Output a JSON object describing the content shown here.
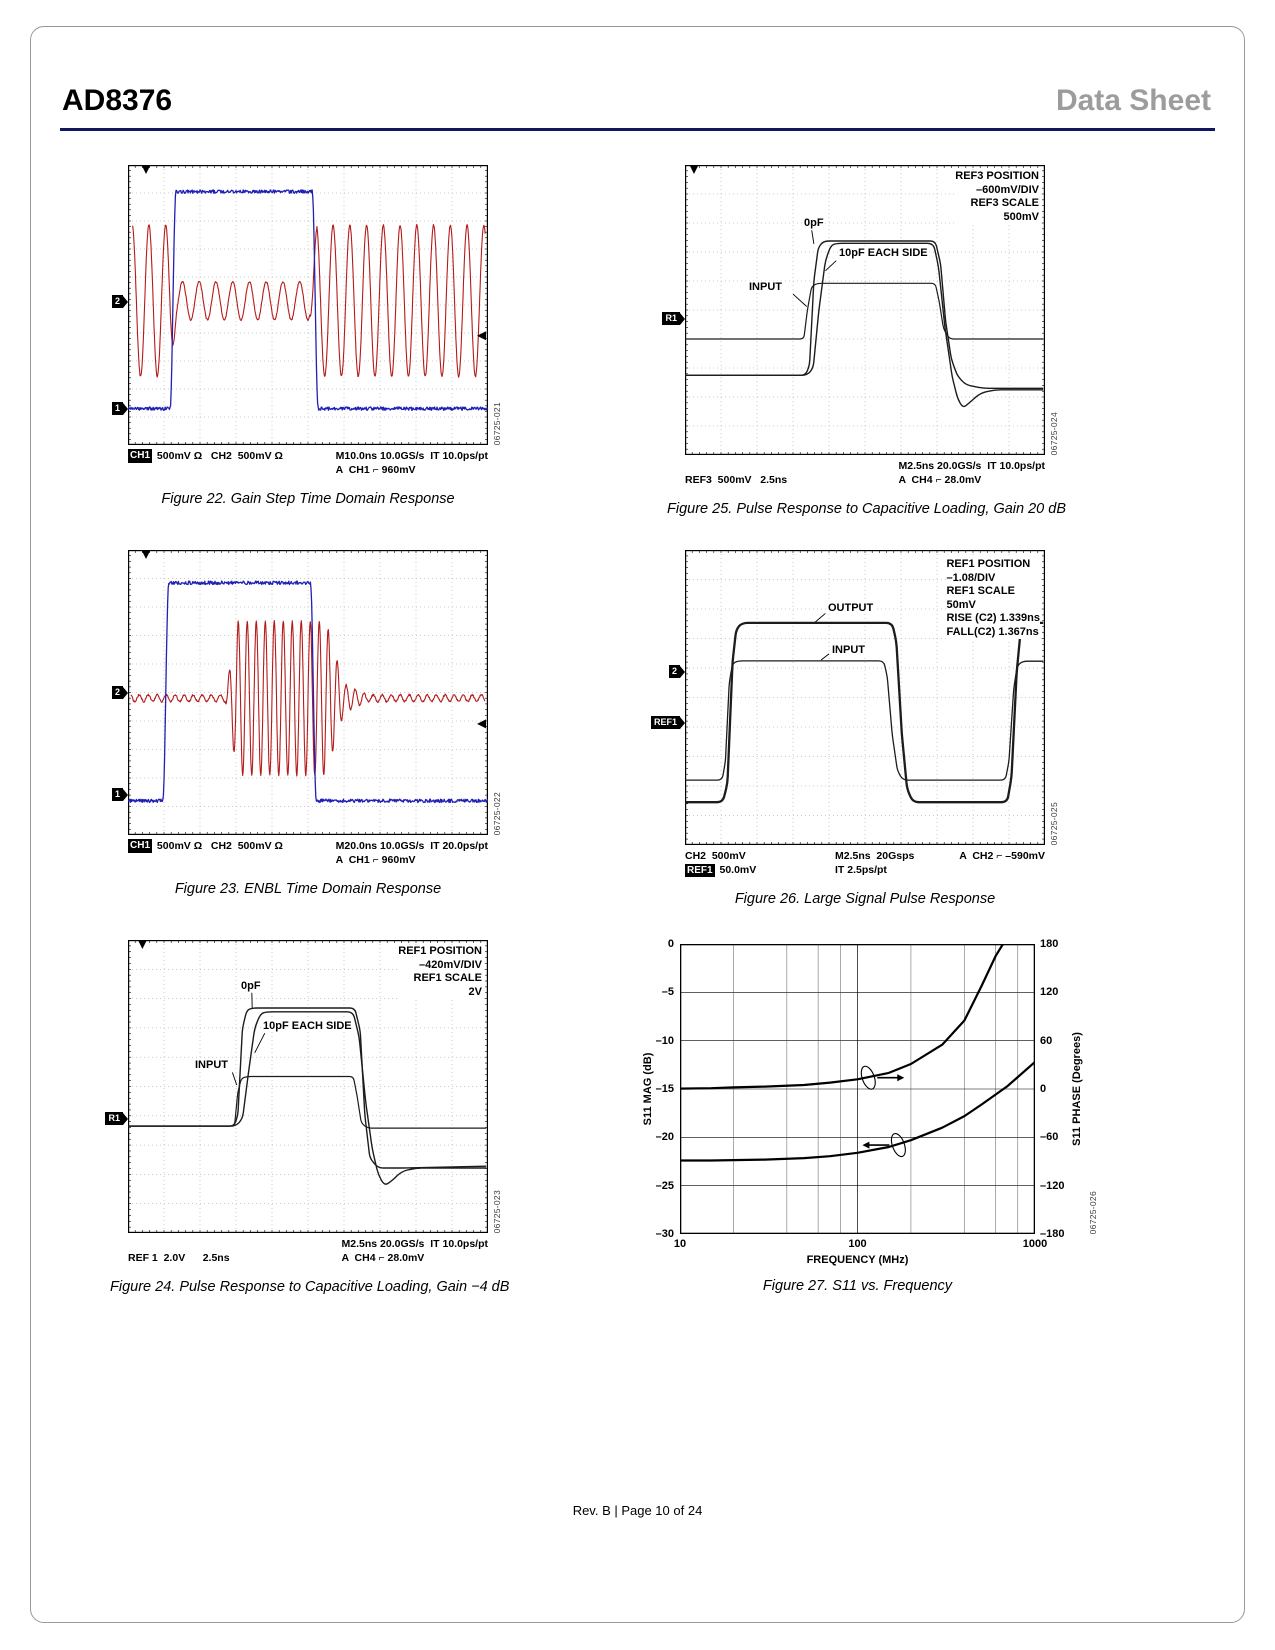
{
  "page": {
    "part_number": "AD8376",
    "doc_type": "Data Sheet",
    "footer_text": "Rev. B | Page 10 of 24",
    "colors": {
      "header_rule": "#10175e",
      "doc_type_gray": "#9c9c9c",
      "trace_blue": "#2020b4",
      "trace_red": "#b51a1a",
      "trace_dark": "#1c1c1c"
    }
  },
  "fig22": {
    "caption": "Figure 22. Gain Step Time Domain Response",
    "code": "06725-021",
    "tag2": "2",
    "tag1": "1",
    "footer": {
      "ch_box": "CH1",
      "left": " 500mV Ω   CH2  500mV Ω",
      "right1": "M10.0ns 10.0GS/s  IT 10.0ps/pt",
      "right2": "A  CH1 ⌐ 960mV"
    }
  },
  "fig23": {
    "caption": "Figure 23. ENBL Time Domain Response",
    "code": "06725-022",
    "tag2": "2",
    "tag1": "1",
    "footer": {
      "ch_box": "CH1",
      "left": " 500mV Ω   CH2  500mV Ω",
      "right1": "M20.0ns 10.0GS/s  IT 20.0ps/pt",
      "right2": "A  CH1 ⌐ 960mV"
    }
  },
  "fig24": {
    "caption": "Figure 24. Pulse Response to Capacitive Loading, Gain −4 dB",
    "code": "06725-023",
    "tagref": "R1",
    "ref_block": [
      "REF1 POSITION",
      "–420mV/DIV",
      "REF1 SCALE",
      "2V"
    ],
    "labels": {
      "cap0": "0pF",
      "cap10": "10pF EACH SIDE",
      "input": "INPUT"
    },
    "footer": {
      "left2": "REF 1  2.0V      2.5ns",
      "right1": "M2.5ns 20.0GS/s  IT 10.0ps/pt",
      "right2": "A  CH4 ⌐ 28.0mV"
    }
  },
  "fig25": {
    "caption": "Figure 25. Pulse Response to Capacitive Loading, Gain 20 dB",
    "code": "06725-024",
    "tagref": "R1",
    "ref_block": [
      "REF3 POSITION",
      "–600mV/DIV",
      "REF3 SCALE",
      "500mV"
    ],
    "labels": {
      "cap0": "0pF",
      "cap10": "10pF EACH SIDE",
      "input": "INPUT"
    },
    "footer": {
      "left2": "REF3  500mV   2.5ns",
      "right1": "M2.5ns 20.0GS/s  IT 10.0ps/pt",
      "right2": "A  CH4 ⌐ 28.0mV"
    }
  },
  "fig26": {
    "caption": "Figure 26. Large Signal Pulse Response",
    "code": "06725-025",
    "tag2": "2",
    "tagref": "REF1",
    "ref_block": [
      "REF1 POSITION",
      "–1.08/DIV",
      "REF1 SCALE",
      "50mV",
      "RISE (C2) 1.339ns",
      "FALL(C2) 1.367ns"
    ],
    "labels": {
      "output": "OUTPUT",
      "input": "INPUT"
    },
    "footer": {
      "c1": "CH2  500mV",
      "c2": "M2.5ns  20Gsps",
      "c3": "A  CH2 ⌐ –590mV",
      "r2c1_box": "REF1",
      "r2c1": " 50.0mV",
      "r2c2": "IT 2.5ps/pt"
    }
  },
  "fig27": {
    "caption": "Figure 27. S11 vs. Frequency",
    "code": "06725-026"
  },
  "chart_data": {
    "type": "line",
    "xlabel": "FREQUENCY (MHz)",
    "ylabel_left": "S11 MAG (dB)",
    "ylabel_right": "S11 PHASE (Degrees)",
    "x_scale": "log",
    "xlim": [
      10,
      1000
    ],
    "ylim_left": [
      -30,
      0
    ],
    "ylim_right": [
      -180,
      180
    ],
    "grid": true,
    "xticks": [
      {
        "label": "10",
        "v": 10
      },
      {
        "label": "100",
        "v": 100
      },
      {
        "label": "1000",
        "v": 1000
      }
    ],
    "yticks_left": [
      {
        "label": "0",
        "v": 0
      },
      {
        "label": "–5",
        "v": -5
      },
      {
        "label": "–10",
        "v": -10
      },
      {
        "label": "–15",
        "v": -15
      },
      {
        "label": "–20",
        "v": -20
      },
      {
        "label": "–25",
        "v": -25
      },
      {
        "label": "–30",
        "v": -30
      }
    ],
    "yticks_right": [
      {
        "label": "180",
        "v": 180
      },
      {
        "label": "120",
        "v": 120
      },
      {
        "label": "60",
        "v": 60
      },
      {
        "label": "0",
        "v": 0
      },
      {
        "label": "–60",
        "v": -60
      },
      {
        "label": "–120",
        "v": -120
      },
      {
        "label": "–180",
        "v": -180
      }
    ],
    "series": [
      {
        "name": "S11 MAG",
        "axis": "left",
        "x": [
          10,
          15,
          20,
          30,
          50,
          70,
          100,
          150,
          200,
          300,
          400,
          500,
          700,
          1000
        ],
        "y": [
          -22.4,
          -22.4,
          -22.35,
          -22.3,
          -22.15,
          -21.95,
          -21.6,
          -21.0,
          -20.3,
          -19.0,
          -17.8,
          -16.6,
          -14.7,
          -12.2
        ]
      },
      {
        "name": "S11 PHASE",
        "axis": "right",
        "x": [
          10,
          15,
          20,
          30,
          50,
          70,
          100,
          150,
          200,
          300,
          400,
          500,
          600,
          660
        ],
        "y": [
          0.5,
          1,
          2,
          3,
          5,
          8,
          12,
          20,
          31,
          55,
          85,
          128,
          165,
          180
        ]
      }
    ],
    "annotations": [
      {
        "x": 115,
        "y": 14,
        "axis": "right",
        "arrow": "right",
        "tilt": -20
      },
      {
        "x": 170,
        "y": -20.8,
        "axis": "left",
        "arrow": "left",
        "tilt": -20
      }
    ]
  },
  "scope_traces": {
    "fig22": {
      "topmark": 0.05,
      "rightmark": 0.61,
      "traces": [
        {
          "kind": "burst",
          "color": "red",
          "w": 1.1,
          "center": 0.485,
          "freq": 21.5,
          "noise": 0.006,
          "seed": 7,
          "segs": [
            [
              0.012,
              0.115,
              0.27,
              0.27
            ],
            [
              0.115,
              0.135,
              0.27,
              0.068
            ],
            [
              0.135,
              0.505,
              0.068,
              0.068
            ],
            [
              0.505,
              0.525,
              0.068,
              0.27
            ],
            [
              0.525,
              0.992,
              0.27,
              0.27
            ]
          ]
        },
        {
          "kind": "pulse",
          "color": "blue",
          "w": 1.3,
          "base": 0.87,
          "top": 0.095,
          "rise": 0.125,
          "fall": 0.52,
          "edge": 0.008,
          "noise": 0.012,
          "seed": 3
        }
      ]
    },
    "fig23": {
      "topmark": 0.05,
      "rightmark": 0.61,
      "traces": [
        {
          "kind": "burst",
          "color": "red",
          "w": 1.1,
          "center": 0.52,
          "freq": 40,
          "noise": 0.006,
          "seed": 11,
          "segs": [
            [
              0.008,
              0.27,
              0.012,
              0.012
            ],
            [
              0.27,
              0.305,
              0.012,
              0.27
            ],
            [
              0.305,
              0.55,
              0.27,
              0.27
            ],
            [
              0.55,
              0.6,
              0.27,
              0.05
            ],
            [
              0.6,
              0.66,
              0.05,
              0.015
            ],
            [
              0.66,
              0.992,
              0.012,
              0.012
            ]
          ]
        },
        {
          "kind": "pulse",
          "color": "blue",
          "w": 1.3,
          "base": 0.88,
          "top": 0.115,
          "rise": 0.105,
          "fall": 0.515,
          "edge": 0.008,
          "noise": 0.012,
          "seed": 5
        }
      ]
    },
    "fig24": {
      "topmark": 0.04,
      "leaders": [
        [
          0.344,
          0.18,
          0.345,
          0.235
        ],
        [
          0.38,
          0.318,
          0.352,
          0.385
        ],
        [
          0.29,
          0.452,
          0.302,
          0.495
        ]
      ],
      "traces": [
        {
          "kind": "poly",
          "color": "dark",
          "w": 1.4,
          "r": 5,
          "pts": [
            [
              0,
              0.635
            ],
            [
              0.295,
              0.635
            ],
            [
              0.305,
              0.6
            ],
            [
              0.318,
              0.3
            ],
            [
              0.33,
              0.24
            ],
            [
              0.345,
              0.232
            ],
            [
              0.63,
              0.232
            ],
            [
              0.645,
              0.31
            ],
            [
              0.658,
              0.6
            ],
            [
              0.672,
              0.745
            ],
            [
              0.695,
              0.778
            ],
            [
              0.76,
              0.778
            ],
            [
              0.995,
              0.772
            ]
          ]
        },
        {
          "kind": "poly",
          "color": "dark",
          "w": 1.4,
          "r": 6,
          "pts": [
            [
              0,
              0.635
            ],
            [
              0.3,
              0.635
            ],
            [
              0.318,
              0.61
            ],
            [
              0.335,
              0.45
            ],
            [
              0.352,
              0.3
            ],
            [
              0.368,
              0.252
            ],
            [
              0.385,
              0.245
            ],
            [
              0.625,
              0.245
            ],
            [
              0.642,
              0.33
            ],
            [
              0.66,
              0.55
            ],
            [
              0.678,
              0.71
            ],
            [
              0.695,
              0.8
            ],
            [
              0.712,
              0.838
            ],
            [
              0.73,
              0.825
            ],
            [
              0.76,
              0.79
            ],
            [
              0.8,
              0.778
            ],
            [
              0.995,
              0.778
            ]
          ]
        },
        {
          "kind": "poly",
          "color": "dark",
          "w": 1.2,
          "r": 4,
          "pts": [
            [
              0,
              0.635
            ],
            [
              0.296,
              0.635
            ],
            [
              0.305,
              0.52
            ],
            [
              0.315,
              0.472
            ],
            [
              0.33,
              0.466
            ],
            [
              0.626,
              0.466
            ],
            [
              0.636,
              0.53
            ],
            [
              0.648,
              0.625
            ],
            [
              0.665,
              0.642
            ],
            [
              0.995,
              0.642
            ]
          ]
        }
      ]
    },
    "fig25": {
      "topmark": 0.025,
      "leaders": [
        [
          0.352,
          0.225,
          0.358,
          0.272
        ],
        [
          0.42,
          0.33,
          0.39,
          0.365
        ],
        [
          0.3,
          0.445,
          0.338,
          0.488
        ]
      ],
      "traces": [
        {
          "kind": "poly",
          "color": "dark",
          "w": 1.2,
          "r": 4,
          "pts": [
            [
              0,
              0.6
            ],
            [
              0.33,
              0.6
            ],
            [
              0.34,
              0.5
            ],
            [
              0.352,
              0.418
            ],
            [
              0.368,
              0.408
            ],
            [
              0.695,
              0.408
            ],
            [
              0.706,
              0.47
            ],
            [
              0.718,
              0.565
            ],
            [
              0.735,
              0.6
            ],
            [
              0.995,
              0.6
            ]
          ]
        },
        {
          "kind": "poly",
          "color": "dark",
          "w": 1.4,
          "r": 5,
          "pts": [
            [
              0,
              0.725
            ],
            [
              0.335,
              0.725
            ],
            [
              0.346,
              0.69
            ],
            [
              0.358,
              0.4
            ],
            [
              0.37,
              0.285
            ],
            [
              0.385,
              0.262
            ],
            [
              0.695,
              0.262
            ],
            [
              0.71,
              0.34
            ],
            [
              0.724,
              0.54
            ],
            [
              0.74,
              0.67
            ],
            [
              0.757,
              0.728
            ],
            [
              0.78,
              0.758
            ],
            [
              0.83,
              0.77
            ],
            [
              0.995,
              0.77
            ]
          ]
        },
        {
          "kind": "poly",
          "color": "dark",
          "w": 1.4,
          "r": 6,
          "pts": [
            [
              0,
              0.725
            ],
            [
              0.34,
              0.725
            ],
            [
              0.356,
              0.7
            ],
            [
              0.372,
              0.5
            ],
            [
              0.39,
              0.33
            ],
            [
              0.405,
              0.278
            ],
            [
              0.42,
              0.27
            ],
            [
              0.69,
              0.27
            ],
            [
              0.704,
              0.35
            ],
            [
              0.722,
              0.56
            ],
            [
              0.742,
              0.73
            ],
            [
              0.757,
              0.805
            ],
            [
              0.772,
              0.838
            ],
            [
              0.788,
              0.822
            ],
            [
              0.82,
              0.787
            ],
            [
              0.86,
              0.775
            ],
            [
              0.995,
              0.775
            ]
          ]
        }
      ]
    },
    "fig26": {
      "leaders": [
        [
          0.39,
          0.215,
          0.362,
          0.244
        ],
        [
          0.4,
          0.352,
          0.378,
          0.373
        ]
      ],
      "traces": [
        {
          "kind": "poly",
          "color": "dark",
          "w": 2.3,
          "r": 6,
          "pts": [
            [
              0,
              0.855
            ],
            [
              0.105,
              0.855
            ],
            [
              0.118,
              0.79
            ],
            [
              0.132,
              0.38
            ],
            [
              0.142,
              0.27
            ],
            [
              0.158,
              0.247
            ],
            [
              0.575,
              0.247
            ],
            [
              0.587,
              0.31
            ],
            [
              0.602,
              0.62
            ],
            [
              0.617,
              0.81
            ],
            [
              0.633,
              0.855
            ],
            [
              0.895,
              0.855
            ],
            [
              0.907,
              0.77
            ],
            [
              0.921,
              0.42
            ],
            [
              0.932,
              0.28
            ],
            [
              0.948,
              0.247
            ],
            [
              0.995,
              0.247
            ]
          ]
        },
        {
          "kind": "poly",
          "color": "dark",
          "w": 1.3,
          "r": 5,
          "pts": [
            [
              0,
              0.78
            ],
            [
              0.103,
              0.78
            ],
            [
              0.112,
              0.72
            ],
            [
              0.123,
              0.45
            ],
            [
              0.132,
              0.385
            ],
            [
              0.147,
              0.376
            ],
            [
              0.552,
              0.376
            ],
            [
              0.562,
              0.43
            ],
            [
              0.576,
              0.63
            ],
            [
              0.59,
              0.748
            ],
            [
              0.605,
              0.78
            ],
            [
              0.89,
              0.78
            ],
            [
              0.9,
              0.715
            ],
            [
              0.913,
              0.47
            ],
            [
              0.923,
              0.392
            ],
            [
              0.938,
              0.377
            ],
            [
              0.995,
              0.377
            ]
          ]
        }
      ]
    }
  }
}
